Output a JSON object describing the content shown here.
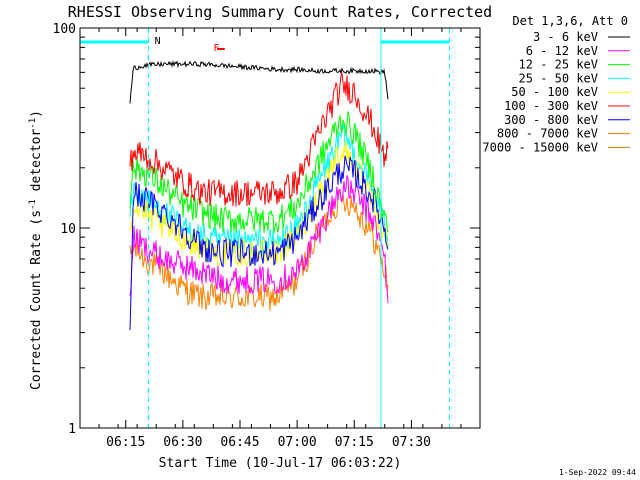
{
  "chart_data": {
    "type": "line",
    "title": "RHESSI Observing Summary Count Rates, Corrected",
    "xlabel": "Start Time (10-Jul-17 06:03:22)",
    "ylabel": "Corrected Count Rate (s⁻¹ detector⁻¹)",
    "ylabel_parts": {
      "main": "Corrected Count Rate (s",
      "exp1": "-1",
      "mid": " detector",
      "exp2": "-1",
      "end": ")"
    },
    "yscale": "log",
    "ylim": [
      1,
      100
    ],
    "xlim": [
      "06:03",
      "07:48"
    ],
    "x_ticks": [
      "06:15",
      "06:30",
      "06:45",
      "07:00",
      "07:15",
      "07:30"
    ],
    "y_ticks": [
      "1",
      "10",
      "100"
    ],
    "legend_title": "Det 1,3,6, Att 0",
    "legend_position": "right",
    "grid": false,
    "timestamp": "1-Sep-2022 09:44",
    "annotations": {
      "night_label": "N",
      "flare_label": "F",
      "night_intervals": [
        [
          "06:03",
          "06:21"
        ],
        [
          "07:22",
          "07:40"
        ]
      ]
    },
    "series": [
      {
        "name": "3 - 6 keV",
        "color": "#000000",
        "x": [
          "06:16",
          "06:17",
          "06:20",
          "06:25",
          "06:30",
          "06:35",
          "06:40",
          "06:45",
          "06:50",
          "06:55",
          "07:00",
          "07:05",
          "07:10",
          "07:15",
          "07:20",
          "07:23",
          "07:24"
        ],
        "y": [
          40,
          63,
          65,
          66,
          66,
          66,
          65,
          64,
          63,
          62,
          62,
          61,
          61,
          61,
          61,
          60,
          42
        ]
      },
      {
        "name": "6 - 12 keV",
        "color": "#ff00ff",
        "x": [
          "06:16",
          "06:17",
          "06:20",
          "06:25",
          "06:30",
          "06:35",
          "06:40",
          "06:45",
          "06:50",
          "06:55",
          "07:00",
          "07:05",
          "07:10",
          "07:12",
          "07:15",
          "07:20",
          "07:23",
          "07:24"
        ],
        "y": [
          4,
          9,
          8,
          7,
          6.5,
          6,
          5.5,
          5.5,
          5.5,
          5.5,
          6,
          9,
          14,
          16,
          15,
          11,
          7,
          4
        ]
      },
      {
        "name": "12 - 25 keV",
        "color": "#00ff00",
        "x": [
          "06:16",
          "06:17",
          "06:20",
          "06:25",
          "06:30",
          "06:35",
          "06:40",
          "06:45",
          "06:50",
          "06:55",
          "07:00",
          "07:05",
          "07:10",
          "07:12",
          "07:15",
          "07:20",
          "07:23",
          "07:24"
        ],
        "y": [
          14,
          20,
          19,
          16,
          13,
          12,
          11,
          11,
          11,
          11,
          13,
          20,
          31,
          35,
          30,
          18,
          11,
          10
        ]
      },
      {
        "name": "25 - 50 keV",
        "color": "#00ffff",
        "x": [
          "06:16",
          "06:17",
          "06:20",
          "06:25",
          "06:30",
          "06:35",
          "06:40",
          "06:45",
          "06:50",
          "06:55",
          "07:00",
          "07:05",
          "07:10",
          "07:12",
          "07:15",
          "07:20",
          "07:23",
          "07:24"
        ],
        "y": [
          12,
          15,
          14,
          12,
          10,
          9,
          8.5,
          8.5,
          8.5,
          8.5,
          10,
          16,
          25,
          29,
          24,
          15,
          10,
          9
        ]
      },
      {
        "name": "50 - 100 keV",
        "color": "#ffff00",
        "x": [
          "06:16",
          "06:17",
          "06:20",
          "06:25",
          "06:30",
          "06:35",
          "06:40",
          "06:45",
          "06:50",
          "06:55",
          "07:00",
          "07:05",
          "07:10",
          "07:12",
          "07:15",
          "07:20",
          "07:23",
          "07:24"
        ],
        "y": [
          10,
          13,
          12,
          10,
          9,
          8,
          7.5,
          7.5,
          7.5,
          7.5,
          9,
          14,
          22,
          25,
          21,
          13,
          9,
          8
        ]
      },
      {
        "name": "100 - 300 keV",
        "color": "#ff0000",
        "x": [
          "06:16",
          "06:17",
          "06:20",
          "06:25",
          "06:30",
          "06:35",
          "06:40",
          "06:45",
          "06:50",
          "06:55",
          "07:00",
          "07:05",
          "07:10",
          "07:12",
          "07:15",
          "07:20",
          "07:23",
          "07:24"
        ],
        "y": [
          20,
          24,
          23,
          20,
          17,
          15,
          15,
          15,
          15,
          15,
          17,
          28,
          45,
          52,
          48,
          32,
          22,
          26
        ]
      },
      {
        "name": "300 - 800 keV",
        "color": "#0000ff",
        "x": [
          "06:16",
          "06:17",
          "06:20",
          "06:25",
          "06:30",
          "06:35",
          "06:40",
          "06:45",
          "06:50",
          "06:55",
          "07:00",
          "07:05",
          "07:10",
          "07:12",
          "07:15",
          "07:20",
          "07:23",
          "07:24"
        ],
        "y": [
          2.5,
          15,
          14,
          12,
          10,
          8,
          7.5,
          7.5,
          7.5,
          7.5,
          9,
          13,
          18,
          20,
          19,
          14,
          10,
          8
        ]
      },
      {
        "name": "800 - 7000 keV",
        "color": "#ff8000",
        "x": [
          "06:16",
          "06:17",
          "06:20",
          "06:25",
          "06:30",
          "06:35",
          "06:40",
          "06:45",
          "06:50",
          "06:55",
          "07:00",
          "07:05",
          "07:10",
          "07:12",
          "07:15",
          "07:20",
          "07:23",
          "07:24"
        ],
        "y": [
          7,
          8,
          7,
          6,
          5,
          4.5,
          4.5,
          4.5,
          4.5,
          4.5,
          5.5,
          9,
          13,
          14,
          13,
          9,
          6,
          5
        ]
      },
      {
        "name": "7000 - 15000 keV",
        "color": "#b8860b",
        "x": [],
        "y": []
      }
    ]
  }
}
